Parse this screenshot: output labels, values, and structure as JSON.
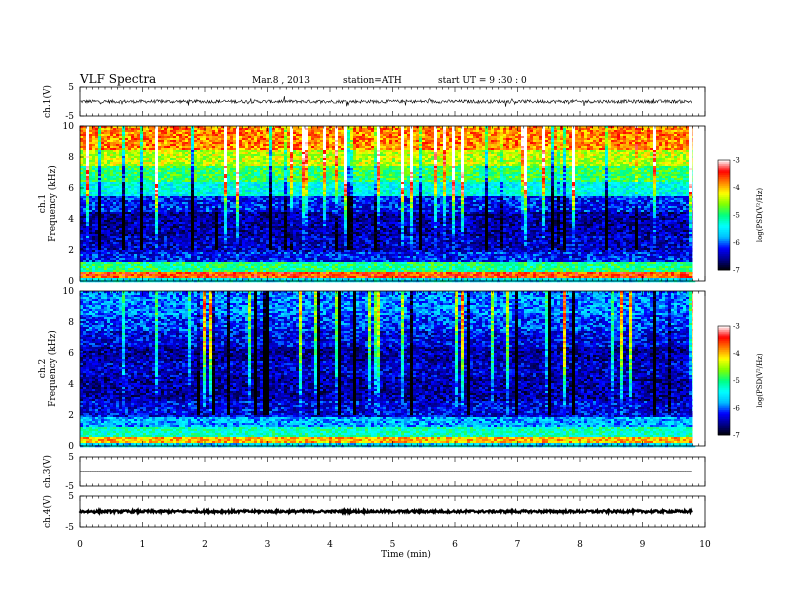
{
  "header": {
    "title": "VLF  Spectra",
    "date": "Mar.8  , 2013",
    "station": "station=ATH",
    "start_ut": "start  UT  =   9  :30 : 0"
  },
  "colors": {
    "spectrogram_colormap": [
      "#000000",
      "#00008b",
      "#0000ff",
      "#00bfff",
      "#00ffff",
      "#00ff80",
      "#80ff00",
      "#ffff00",
      "#ff8000",
      "#ff0000",
      "#ffffff"
    ],
    "waveform_line": "#000000",
    "axis": "#000000"
  },
  "chart_data": [
    {
      "type": "line",
      "panel": "ch1-waveform",
      "ylabel": "ch.1(V)",
      "ylim": [
        -5,
        5
      ],
      "yticks": [
        "5",
        "-5"
      ],
      "xlim": [
        0,
        10
      ],
      "description_values": {
        "mean": 0.0,
        "typical_amplitude": 0.6,
        "spike_max": 1.5
      }
    },
    {
      "type": "heatmap",
      "panel": "ch1-spectrogram",
      "ylabel": "ch.1\nFrequency (kHz)",
      "ylabel_lines": [
        "ch.1",
        "Frequency (kHz)"
      ],
      "ylim": [
        0,
        10
      ],
      "yticks": [
        "0",
        "2",
        "4",
        "6",
        "8",
        "10"
      ],
      "xlim": [
        0,
        10
      ],
      "data_end_min": 9.8,
      "colorbar": {
        "label": "log(PSD(V²/Hz)",
        "range": [
          -7,
          -3
        ],
        "ticks": [
          "-3",
          "-4",
          "-5",
          "-6",
          "-7"
        ]
      },
      "bands_logpsd": [
        {
          "f_from": 0.0,
          "f_to": 0.3,
          "level": -5.5
        },
        {
          "f_from": 0.3,
          "f_to": 0.7,
          "level": -3.6
        },
        {
          "f_from": 0.7,
          "f_to": 1.3,
          "level": -5.0
        },
        {
          "f_from": 1.3,
          "f_to": 2.0,
          "level": -6.2
        },
        {
          "f_from": 2.0,
          "f_to": 3.0,
          "level": -6.4
        },
        {
          "f_from": 3.0,
          "f_to": 4.5,
          "level": -6.5
        },
        {
          "f_from": 4.5,
          "f_to": 5.5,
          "level": -6.2
        },
        {
          "f_from": 5.5,
          "f_to": 6.5,
          "level": -5.4
        },
        {
          "f_from": 6.5,
          "f_to": 7.5,
          "level": -4.9
        },
        {
          "f_from": 7.5,
          "f_to": 8.5,
          "level": -4.4
        },
        {
          "f_from": 8.5,
          "f_to": 10.0,
          "level": -3.8
        }
      ]
    },
    {
      "type": "heatmap",
      "panel": "ch2-spectrogram",
      "ylabel": "ch.2\nFrequency (kHz)",
      "ylabel_lines": [
        "ch.2",
        "Frequency (kHz)"
      ],
      "ylim": [
        0,
        10
      ],
      "yticks": [
        "0",
        "2",
        "4",
        "6",
        "8",
        "10"
      ],
      "xlim": [
        0,
        10
      ],
      "data_end_min": 9.8,
      "colorbar": {
        "label": "log(PSD(V²/Hz)",
        "range": [
          -7,
          -3
        ],
        "ticks": [
          "-3",
          "-4",
          "-5",
          "-6",
          "-7"
        ]
      },
      "bands_logpsd": [
        {
          "f_from": 0.0,
          "f_to": 0.3,
          "level": -5.6
        },
        {
          "f_from": 0.3,
          "f_to": 0.7,
          "level": -4.0
        },
        {
          "f_from": 0.7,
          "f_to": 1.3,
          "level": -5.2
        },
        {
          "f_from": 1.3,
          "f_to": 2.0,
          "level": -5.8
        },
        {
          "f_from": 2.0,
          "f_to": 3.0,
          "level": -6.3
        },
        {
          "f_from": 3.0,
          "f_to": 4.5,
          "level": -6.5
        },
        {
          "f_from": 4.5,
          "f_to": 5.5,
          "level": -6.4
        },
        {
          "f_from": 5.5,
          "f_to": 6.5,
          "level": -6.5
        },
        {
          "f_from": 6.5,
          "f_to": 7.5,
          "level": -6.3
        },
        {
          "f_from": 7.5,
          "f_to": 8.5,
          "level": -6.1
        },
        {
          "f_from": 8.5,
          "f_to": 10.0,
          "level": -5.9
        }
      ]
    },
    {
      "type": "line",
      "panel": "ch3-waveform",
      "ylabel": "ch.3(V)",
      "ylim": [
        -5,
        5
      ],
      "yticks": [
        "5",
        "-5"
      ],
      "xlim": [
        0,
        10
      ],
      "description_values": {
        "mean": 0.0,
        "typical_amplitude": 0.05
      }
    },
    {
      "type": "line",
      "panel": "ch4-waveform",
      "ylabel": "ch.4(V)",
      "ylim": [
        -5,
        5
      ],
      "yticks": [
        "5",
        "-5"
      ],
      "xlim": [
        0,
        10
      ],
      "xlabel": "Time  (min)",
      "xticks": [
        "0",
        "1",
        "2",
        "3",
        "4",
        "5",
        "6",
        "7",
        "8",
        "9",
        "10"
      ],
      "description_values": {
        "mean": 0.0,
        "typical_amplitude": 0.4
      }
    }
  ]
}
